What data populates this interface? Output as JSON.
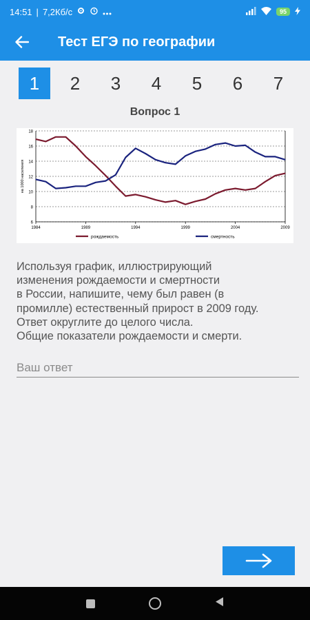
{
  "status_bar": {
    "time": "14:51",
    "network_speed": "7,2Кб/с",
    "battery": "95",
    "icons": [
      "settings-icon",
      "alarm-icon",
      "more-icon",
      "signal-icon",
      "wifi-icon",
      "battery-icon",
      "charging-icon"
    ]
  },
  "app_bar": {
    "title": "Тест ЕГЭ по географии",
    "back_icon": "arrow-left-icon"
  },
  "tabs": [
    {
      "label": "1",
      "active": true
    },
    {
      "label": "2",
      "active": false
    },
    {
      "label": "3",
      "active": false
    },
    {
      "label": "4",
      "active": false
    },
    {
      "label": "5",
      "active": false
    },
    {
      "label": "6",
      "active": false
    },
    {
      "label": "7",
      "active": false
    }
  ],
  "question": {
    "title": "Вопрос 1",
    "text_lines": [
      "Используя график, иллюстрирующий",
      "изменения рождаемости и смертности",
      "в России, напишите, чему был равен (в",
      "промилле) естественный прирост в 2009 году.",
      "Ответ округлите до целого числа.",
      "Общие показатели рождаемости и смерти."
    ]
  },
  "answer": {
    "placeholder": "Ваш ответ",
    "value": ""
  },
  "next_button": {
    "icon": "arrow-right-icon"
  },
  "nav_bar": {
    "icons": [
      "recents-icon",
      "home-icon",
      "back-icon"
    ]
  },
  "colors": {
    "primary": "#1e8fe6",
    "birth_series": "#7b1a2e",
    "death_series": "#1a237e"
  },
  "chart_data": {
    "type": "line",
    "title": "",
    "ylabel": "на 1000 населения",
    "xlabel": "",
    "ylim": [
      6,
      18
    ],
    "xlim": [
      1984,
      2009
    ],
    "yticks": [
      "6",
      "8",
      "10",
      "12",
      "14",
      "16",
      "18"
    ],
    "xticks": [
      "1984",
      "1989",
      "1994",
      "1999",
      "2004",
      "2009"
    ],
    "grid": "horizontal dashed",
    "legend_position": "bottom",
    "x": [
      1984,
      1985,
      1986,
      1987,
      1988,
      1989,
      1990,
      1991,
      1992,
      1993,
      1994,
      1995,
      1996,
      1997,
      1998,
      1999,
      2000,
      2001,
      2002,
      2003,
      2004,
      2005,
      2006,
      2007,
      2008,
      2009
    ],
    "series": [
      {
        "name": "рождаемость",
        "color": "#7b1a2e",
        "values": [
          16.9,
          16.6,
          17.2,
          17.2,
          16.0,
          14.6,
          13.4,
          12.1,
          10.7,
          9.4,
          9.6,
          9.3,
          8.9,
          8.6,
          8.8,
          8.3,
          8.7,
          9.0,
          9.7,
          10.2,
          10.4,
          10.2,
          10.4,
          11.3,
          12.1,
          12.4
        ]
      },
      {
        "name": "смертность",
        "color": "#1a237e",
        "values": [
          11.6,
          11.3,
          10.4,
          10.5,
          10.7,
          10.7,
          11.2,
          11.4,
          12.2,
          14.5,
          15.7,
          15.0,
          14.2,
          13.8,
          13.6,
          14.7,
          15.3,
          15.6,
          16.2,
          16.4,
          16.0,
          16.1,
          15.2,
          14.6,
          14.6,
          14.2
        ]
      }
    ]
  }
}
